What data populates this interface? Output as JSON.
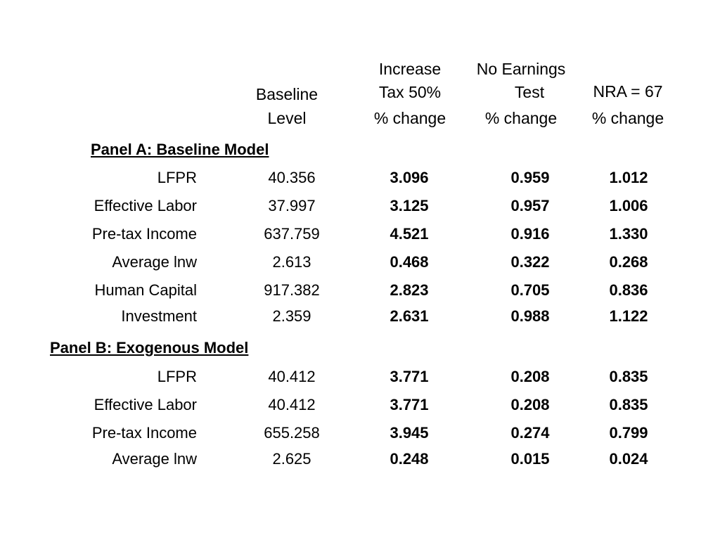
{
  "headers": {
    "baseline": [
      "Baseline",
      "Level"
    ],
    "tax": [
      "Increase",
      "Tax 50%",
      "% change"
    ],
    "earnings": [
      "No Earnings",
      "Test",
      "% change"
    ],
    "nra": [
      "NRA = 67",
      "% change"
    ]
  },
  "panelA": {
    "title": "Panel A: Baseline Model",
    "rows": [
      {
        "label": "LFPR",
        "baseline": "40.356",
        "tax": "3.096",
        "earnings": "0.959",
        "nra": "1.012"
      },
      {
        "label": "Effective Labor",
        "baseline": "37.997",
        "tax": "3.125",
        "earnings": "0.957",
        "nra": "1.006"
      },
      {
        "label": "Pre-tax Income",
        "baseline": "637.759",
        "tax": "4.521",
        "earnings": "0.916",
        "nra": "1.330"
      },
      {
        "label": "Average lnw",
        "baseline": "2.613",
        "tax": "0.468",
        "earnings": "0.322",
        "nra": "0.268"
      },
      {
        "label": "Human Capital",
        "baseline": "917.382",
        "tax": "2.823",
        "earnings": "0.705",
        "nra": "0.836"
      },
      {
        "label": "Investment",
        "baseline": "2.359",
        "tax": "2.631",
        "earnings": "0.988",
        "nra": "1.122"
      }
    ]
  },
  "panelB": {
    "title": "Panel B: Exogenous Model",
    "rows": [
      {
        "label": "LFPR",
        "baseline": "40.412",
        "tax": "3.771",
        "earnings": "0.208",
        "nra": "0.835"
      },
      {
        "label": "Effective Labor",
        "baseline": "40.412",
        "tax": "3.771",
        "earnings": "0.208",
        "nra": "0.835"
      },
      {
        "label": "Pre-tax Income",
        "baseline": "655.258",
        "tax": "3.945",
        "earnings": "0.274",
        "nra": "0.799"
      },
      {
        "label": "Average lnw",
        "baseline": "2.625",
        "tax": "0.248",
        "earnings": "0.015",
        "nra": "0.024"
      }
    ]
  }
}
